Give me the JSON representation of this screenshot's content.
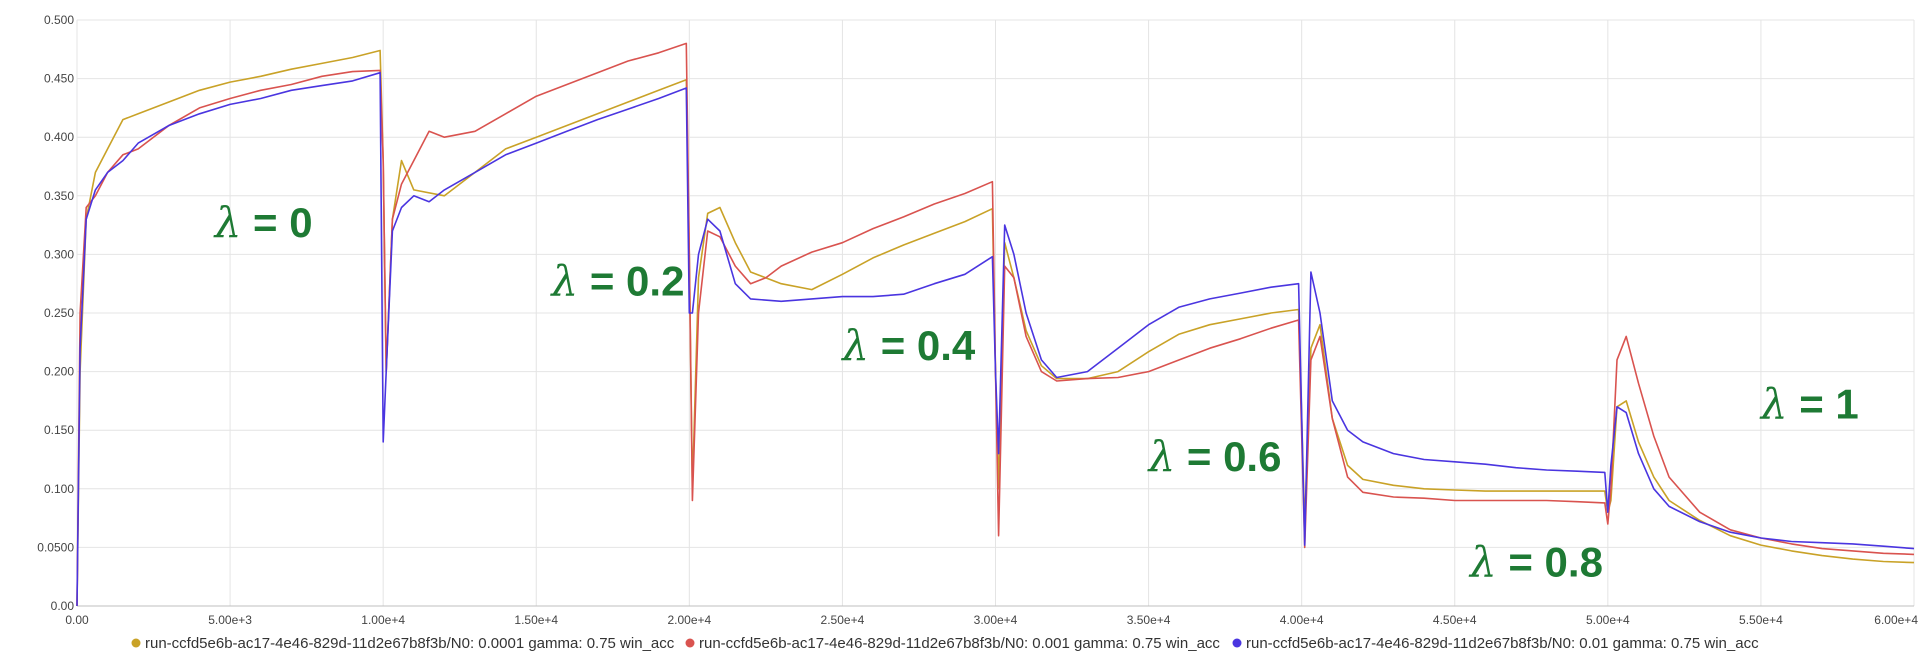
{
  "chart_data": {
    "type": "line",
    "title": "",
    "xlabel": "",
    "ylabel": "",
    "xlim": [
      0,
      60000
    ],
    "ylim": [
      0,
      0.5
    ],
    "x_ticks": [
      {
        "value": 0,
        "label": "0.00"
      },
      {
        "value": 5000,
        "label": "5.00e+3"
      },
      {
        "value": 10000,
        "label": "1.00e+4"
      },
      {
        "value": 15000,
        "label": "1.50e+4"
      },
      {
        "value": 20000,
        "label": "2.00e+4"
      },
      {
        "value": 25000,
        "label": "2.50e+4"
      },
      {
        "value": 30000,
        "label": "3.00e+4"
      },
      {
        "value": 35000,
        "label": "3.50e+4"
      },
      {
        "value": 40000,
        "label": "4.00e+4"
      },
      {
        "value": 45000,
        "label": "4.50e+4"
      },
      {
        "value": 50000,
        "label": "5.00e+4"
      },
      {
        "value": 55000,
        "label": "5.50e+4"
      },
      {
        "value": 60000,
        "label": "6.00e+4"
      }
    ],
    "y_ticks": [
      {
        "value": 0,
        "label": "0.00"
      },
      {
        "value": 0.05,
        "label": "0.0500"
      },
      {
        "value": 0.1,
        "label": "0.100"
      },
      {
        "value": 0.15,
        "label": "0.150"
      },
      {
        "value": 0.2,
        "label": "0.200"
      },
      {
        "value": 0.25,
        "label": "0.250"
      },
      {
        "value": 0.3,
        "label": "0.300"
      },
      {
        "value": 0.35,
        "label": "0.350"
      },
      {
        "value": 0.4,
        "label": "0.400"
      },
      {
        "value": 0.45,
        "label": "0.450"
      },
      {
        "value": 0.5,
        "label": "0.500"
      }
    ],
    "grid": true,
    "legend_position": "bottom",
    "annotations": [
      {
        "symbol": "λ",
        "text": " = 0",
        "x": 4500,
        "y": 0.315
      },
      {
        "symbol": "λ",
        "text": " = 0.2",
        "x": 15500,
        "y": 0.265
      },
      {
        "symbol": "λ",
        "text": " = 0.4",
        "x": 25000,
        "y": 0.21
      },
      {
        "symbol": "λ",
        "text": " = 0.6",
        "x": 35000,
        "y": 0.115
      },
      {
        "symbol": "λ",
        "text": " = 0.8",
        "x": 45500,
        "y": 0.025
      },
      {
        "symbol": "λ",
        "text": " = 1",
        "x": 55000,
        "y": 0.16
      }
    ],
    "series": [
      {
        "name": "run-ccfd5e6b-ac17-4e46-829d-11d2e67b8f3b/N0: 0.0001 gamma: 0.75 win_acc",
        "color": "#c9a227",
        "points": [
          [
            0,
            0.0
          ],
          [
            100,
            0.2
          ],
          [
            300,
            0.33
          ],
          [
            600,
            0.37
          ],
          [
            1000,
            0.39
          ],
          [
            1500,
            0.415
          ],
          [
            2000,
            0.42
          ],
          [
            3000,
            0.43
          ],
          [
            4000,
            0.44
          ],
          [
            5000,
            0.447
          ],
          [
            6000,
            0.452
          ],
          [
            7000,
            0.458
          ],
          [
            8000,
            0.463
          ],
          [
            9000,
            0.468
          ],
          [
            9900,
            0.474
          ],
          [
            10000,
            0.38
          ],
          [
            10100,
            0.2
          ],
          [
            10300,
            0.33
          ],
          [
            10600,
            0.38
          ],
          [
            11000,
            0.355
          ],
          [
            12000,
            0.35
          ],
          [
            13000,
            0.37
          ],
          [
            14000,
            0.39
          ],
          [
            15000,
            0.4
          ],
          [
            16000,
            0.41
          ],
          [
            17000,
            0.42
          ],
          [
            18000,
            0.43
          ],
          [
            19000,
            0.44
          ],
          [
            19900,
            0.449
          ],
          [
            20000,
            0.3
          ],
          [
            20100,
            0.1
          ],
          [
            20300,
            0.28
          ],
          [
            20600,
            0.335
          ],
          [
            21000,
            0.34
          ],
          [
            21500,
            0.31
          ],
          [
            22000,
            0.285
          ],
          [
            23000,
            0.275
          ],
          [
            24000,
            0.27
          ],
          [
            25000,
            0.283
          ],
          [
            26000,
            0.297
          ],
          [
            27000,
            0.308
          ],
          [
            28000,
            0.318
          ],
          [
            29000,
            0.328
          ],
          [
            29900,
            0.339
          ],
          [
            30000,
            0.2
          ],
          [
            30100,
            0.1
          ],
          [
            30300,
            0.31
          ],
          [
            30600,
            0.28
          ],
          [
            31000,
            0.235
          ],
          [
            31500,
            0.205
          ],
          [
            32000,
            0.194
          ],
          [
            33000,
            0.194
          ],
          [
            34000,
            0.2
          ],
          [
            35000,
            0.217
          ],
          [
            36000,
            0.232
          ],
          [
            37000,
            0.24
          ],
          [
            38000,
            0.245
          ],
          [
            39000,
            0.25
          ],
          [
            39900,
            0.253
          ],
          [
            40100,
            0.07
          ],
          [
            40300,
            0.22
          ],
          [
            40600,
            0.24
          ],
          [
            41000,
            0.16
          ],
          [
            41500,
            0.12
          ],
          [
            42000,
            0.108
          ],
          [
            43000,
            0.103
          ],
          [
            44000,
            0.1
          ],
          [
            45000,
            0.099
          ],
          [
            46000,
            0.098
          ],
          [
            47000,
            0.098
          ],
          [
            48000,
            0.098
          ],
          [
            49000,
            0.098
          ],
          [
            49900,
            0.098
          ],
          [
            50000,
            0.08
          ],
          [
            50100,
            0.09
          ],
          [
            50300,
            0.17
          ],
          [
            50600,
            0.175
          ],
          [
            51000,
            0.14
          ],
          [
            51500,
            0.11
          ],
          [
            52000,
            0.09
          ],
          [
            53000,
            0.073
          ],
          [
            54000,
            0.06
          ],
          [
            55000,
            0.052
          ],
          [
            56000,
            0.047
          ],
          [
            57000,
            0.043
          ],
          [
            58000,
            0.04
          ],
          [
            59000,
            0.038
          ],
          [
            60000,
            0.037
          ]
        ]
      },
      {
        "name": "run-ccfd5e6b-ac17-4e46-829d-11d2e67b8f3b/N0: 0.001 gamma: 0.75 win_acc",
        "color": "#d9534f",
        "points": [
          [
            0,
            0.0
          ],
          [
            100,
            0.25
          ],
          [
            300,
            0.34
          ],
          [
            600,
            0.35
          ],
          [
            1000,
            0.37
          ],
          [
            1500,
            0.385
          ],
          [
            2000,
            0.39
          ],
          [
            3000,
            0.41
          ],
          [
            4000,
            0.425
          ],
          [
            5000,
            0.433
          ],
          [
            6000,
            0.44
          ],
          [
            7000,
            0.445
          ],
          [
            8000,
            0.452
          ],
          [
            9000,
            0.456
          ],
          [
            9900,
            0.457
          ],
          [
            10000,
            0.38
          ],
          [
            10100,
            0.2
          ],
          [
            10300,
            0.33
          ],
          [
            10600,
            0.36
          ],
          [
            11000,
            0.38
          ],
          [
            11500,
            0.405
          ],
          [
            12000,
            0.4
          ],
          [
            13000,
            0.405
          ],
          [
            14000,
            0.42
          ],
          [
            15000,
            0.435
          ],
          [
            16000,
            0.445
          ],
          [
            17000,
            0.455
          ],
          [
            18000,
            0.465
          ],
          [
            19000,
            0.472
          ],
          [
            19900,
            0.48
          ],
          [
            20000,
            0.3
          ],
          [
            20100,
            0.09
          ],
          [
            20300,
            0.25
          ],
          [
            20600,
            0.32
          ],
          [
            21000,
            0.315
          ],
          [
            21500,
            0.29
          ],
          [
            22000,
            0.275
          ],
          [
            22500,
            0.28
          ],
          [
            23000,
            0.29
          ],
          [
            24000,
            0.302
          ],
          [
            25000,
            0.31
          ],
          [
            26000,
            0.322
          ],
          [
            27000,
            0.332
          ],
          [
            28000,
            0.343
          ],
          [
            29000,
            0.352
          ],
          [
            29900,
            0.362
          ],
          [
            30000,
            0.2
          ],
          [
            30100,
            0.06
          ],
          [
            30300,
            0.29
          ],
          [
            30600,
            0.28
          ],
          [
            31000,
            0.23
          ],
          [
            31500,
            0.2
          ],
          [
            32000,
            0.192
          ],
          [
            33000,
            0.194
          ],
          [
            34000,
            0.195
          ],
          [
            35000,
            0.2
          ],
          [
            36000,
            0.21
          ],
          [
            37000,
            0.22
          ],
          [
            38000,
            0.228
          ],
          [
            39000,
            0.237
          ],
          [
            39900,
            0.244
          ],
          [
            40100,
            0.05
          ],
          [
            40300,
            0.21
          ],
          [
            40600,
            0.23
          ],
          [
            41000,
            0.16
          ],
          [
            41500,
            0.11
          ],
          [
            42000,
            0.097
          ],
          [
            43000,
            0.093
          ],
          [
            44000,
            0.092
          ],
          [
            45000,
            0.09
          ],
          [
            46000,
            0.09
          ],
          [
            47000,
            0.09
          ],
          [
            48000,
            0.09
          ],
          [
            49000,
            0.089
          ],
          [
            49900,
            0.088
          ],
          [
            50000,
            0.07
          ],
          [
            50100,
            0.1
          ],
          [
            50300,
            0.21
          ],
          [
            50600,
            0.23
          ],
          [
            51000,
            0.19
          ],
          [
            51500,
            0.145
          ],
          [
            52000,
            0.11
          ],
          [
            53000,
            0.08
          ],
          [
            54000,
            0.065
          ],
          [
            55000,
            0.058
          ],
          [
            56000,
            0.053
          ],
          [
            57000,
            0.049
          ],
          [
            58000,
            0.047
          ],
          [
            59000,
            0.045
          ],
          [
            60000,
            0.044
          ]
        ]
      },
      {
        "name": "run-ccfd5e6b-ac17-4e46-829d-11d2e67b8f3b/N0: 0.01 gamma: 0.75 win_acc",
        "color": "#4a35e0",
        "points": [
          [
            0,
            0.0
          ],
          [
            100,
            0.22
          ],
          [
            300,
            0.33
          ],
          [
            600,
            0.355
          ],
          [
            1000,
            0.37
          ],
          [
            1500,
            0.38
          ],
          [
            2000,
            0.395
          ],
          [
            3000,
            0.41
          ],
          [
            4000,
            0.42
          ],
          [
            5000,
            0.428
          ],
          [
            6000,
            0.433
          ],
          [
            7000,
            0.44
          ],
          [
            8000,
            0.444
          ],
          [
            9000,
            0.448
          ],
          [
            9900,
            0.455
          ],
          [
            10000,
            0.14
          ],
          [
            10100,
            0.2
          ],
          [
            10300,
            0.32
          ],
          [
            10600,
            0.34
          ],
          [
            11000,
            0.35
          ],
          [
            11500,
            0.345
          ],
          [
            12000,
            0.355
          ],
          [
            13000,
            0.37
          ],
          [
            14000,
            0.385
          ],
          [
            15000,
            0.395
          ],
          [
            16000,
            0.405
          ],
          [
            17000,
            0.415
          ],
          [
            18000,
            0.424
          ],
          [
            19000,
            0.433
          ],
          [
            19900,
            0.442
          ],
          [
            20000,
            0.25
          ],
          [
            20100,
            0.25
          ],
          [
            20300,
            0.3
          ],
          [
            20600,
            0.33
          ],
          [
            21000,
            0.32
          ],
          [
            21500,
            0.275
          ],
          [
            22000,
            0.262
          ],
          [
            23000,
            0.26
          ],
          [
            24000,
            0.262
          ],
          [
            25000,
            0.264
          ],
          [
            26000,
            0.264
          ],
          [
            27000,
            0.266
          ],
          [
            28000,
            0.275
          ],
          [
            29000,
            0.283
          ],
          [
            29900,
            0.298
          ],
          [
            30000,
            0.2
          ],
          [
            30100,
            0.13
          ],
          [
            30300,
            0.325
          ],
          [
            30600,
            0.3
          ],
          [
            31000,
            0.25
          ],
          [
            31500,
            0.21
          ],
          [
            32000,
            0.195
          ],
          [
            33000,
            0.2
          ],
          [
            34000,
            0.22
          ],
          [
            35000,
            0.24
          ],
          [
            36000,
            0.255
          ],
          [
            37000,
            0.262
          ],
          [
            38000,
            0.267
          ],
          [
            39000,
            0.272
          ],
          [
            39900,
            0.275
          ],
          [
            40100,
            0.052
          ],
          [
            40300,
            0.285
          ],
          [
            40600,
            0.25
          ],
          [
            41000,
            0.175
          ],
          [
            41500,
            0.15
          ],
          [
            42000,
            0.14
          ],
          [
            43000,
            0.13
          ],
          [
            44000,
            0.125
          ],
          [
            45000,
            0.123
          ],
          [
            46000,
            0.121
          ],
          [
            47000,
            0.118
          ],
          [
            48000,
            0.116
          ],
          [
            49000,
            0.115
          ],
          [
            49900,
            0.114
          ],
          [
            50000,
            0.08
          ],
          [
            50100,
            0.12
          ],
          [
            50300,
            0.17
          ],
          [
            50600,
            0.165
          ],
          [
            51000,
            0.13
          ],
          [
            51500,
            0.1
          ],
          [
            52000,
            0.085
          ],
          [
            53000,
            0.072
          ],
          [
            54000,
            0.063
          ],
          [
            55000,
            0.058
          ],
          [
            56000,
            0.055
          ],
          [
            57000,
            0.054
          ],
          [
            58000,
            0.053
          ],
          [
            59000,
            0.051
          ],
          [
            60000,
            0.049
          ]
        ]
      }
    ]
  }
}
